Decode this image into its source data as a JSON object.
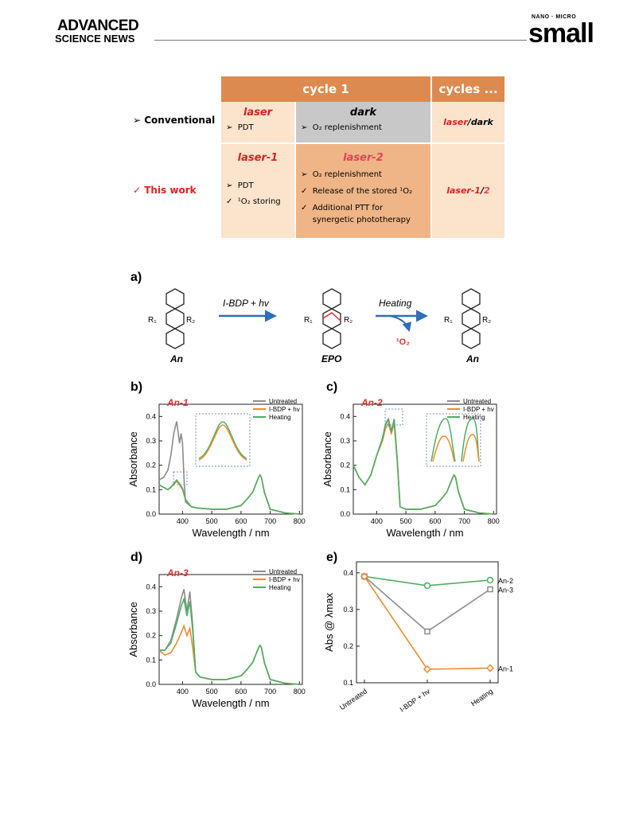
{
  "header": {
    "journal_left_line1": "ADVANCED",
    "journal_left_line2": "SCIENCE NEWS",
    "journal_right_top": "NANO · MICRO",
    "journal_right_main": "small"
  },
  "table": {
    "col_cycle1": "cycle 1",
    "col_cycles": "cycles ...",
    "row1_label": "Conventional",
    "row1_laser_title": "laser",
    "row1_laser_item": "PDT",
    "row1_dark_title": "dark",
    "row1_dark_item": "O₂ replenishment",
    "row1_cycles_a": "laser",
    "row1_cycles_sep": "/",
    "row1_cycles_b": "dark",
    "row2_label": "This work",
    "row2_laser1_title": "laser-1",
    "row2_laser1_item1": "PDT",
    "row2_laser1_item2": "¹O₂ storing",
    "row2_laser2_title": "laser-2",
    "row2_laser2_item1": "O₂ replenishment",
    "row2_laser2_item2": "Release of the stored ¹O₂",
    "row2_laser2_item3": "Additional PTT for synergetic phototherapy",
    "row2_cycles_a": "laser-1",
    "row2_cycles_sep": "/",
    "row2_cycles_b": "2",
    "colors": {
      "header_orange": "#dc8a50",
      "light_peach": "#fbe3cc",
      "gray": "#c8c8c8",
      "red": "#e02020"
    }
  },
  "scheme": {
    "label": "a)",
    "r1": "R₁",
    "r2": "R₂",
    "arrow1": "I-BDP + hv",
    "arrow2": "Heating",
    "released": "¹O₂",
    "mol1": "An",
    "mol2": "EPO",
    "mol3": "An"
  },
  "chart_data": [
    {
      "panel": "b)",
      "type": "line",
      "title": "An-1",
      "xlabel": "Wavelength / nm",
      "ylabel": "Absorbance",
      "xlim": [
        320,
        810
      ],
      "ylim": [
        0,
        0.45
      ],
      "xticks": [
        400,
        500,
        600,
        700,
        800
      ],
      "yticks": [
        0.0,
        0.1,
        0.2,
        0.3,
        0.4
      ],
      "legend": [
        "Untreated",
        "I-BDP + hv",
        "Heating"
      ],
      "series": [
        {
          "name": "Untreated",
          "color": "#8c8c8c",
          "x": [
            320,
            335,
            350,
            360,
            370,
            380,
            390,
            395,
            400,
            405,
            410,
            430,
            450,
            500,
            550,
            600,
            620,
            640,
            660,
            665,
            670,
            680,
            700,
            750,
            800
          ],
          "y": [
            0.14,
            0.15,
            0.18,
            0.24,
            0.33,
            0.38,
            0.29,
            0.33,
            0.29,
            0.15,
            0.05,
            0.03,
            0.025,
            0.02,
            0.02,
            0.035,
            0.06,
            0.09,
            0.15,
            0.16,
            0.15,
            0.09,
            0.02,
            0.005,
            0.0
          ]
        },
        {
          "name": "I-BDP + hv",
          "color": "#f08a30",
          "x": [
            320,
            335,
            350,
            360,
            370,
            380,
            390,
            400,
            410,
            430,
            450,
            500,
            550,
            600,
            620,
            640,
            660,
            665,
            670,
            680,
            700,
            750,
            800
          ],
          "y": [
            0.12,
            0.11,
            0.1,
            0.11,
            0.12,
            0.135,
            0.12,
            0.1,
            0.06,
            0.03,
            0.025,
            0.02,
            0.02,
            0.035,
            0.06,
            0.09,
            0.15,
            0.16,
            0.15,
            0.09,
            0.02,
            0.005,
            0.0
          ]
        },
        {
          "name": "Heating",
          "color": "#4caf63",
          "x": [
            320,
            335,
            350,
            360,
            370,
            380,
            390,
            400,
            410,
            430,
            450,
            500,
            550,
            600,
            620,
            640,
            660,
            665,
            670,
            680,
            700,
            750,
            800
          ],
          "y": [
            0.12,
            0.11,
            0.1,
            0.11,
            0.125,
            0.14,
            0.125,
            0.105,
            0.06,
            0.03,
            0.025,
            0.02,
            0.02,
            0.035,
            0.06,
            0.09,
            0.15,
            0.16,
            0.15,
            0.09,
            0.02,
            0.005,
            0.0
          ]
        }
      ]
    },
    {
      "panel": "c)",
      "type": "line",
      "title": "An-2",
      "xlabel": "Wavelength / nm",
      "ylabel": "Absorbance",
      "xlim": [
        320,
        810
      ],
      "ylim": [
        0,
        0.45
      ],
      "xticks": [
        400,
        500,
        600,
        700,
        800
      ],
      "yticks": [
        0.0,
        0.1,
        0.2,
        0.3,
        0.4
      ],
      "legend": [
        "Untreated",
        "I-BDP + hv",
        "Heating"
      ],
      "series": [
        {
          "name": "Untreated",
          "color": "#8c8c8c",
          "x": [
            320,
            340,
            360,
            380,
            400,
            420,
            430,
            440,
            450,
            460,
            470,
            480,
            500,
            550,
            600,
            620,
            640,
            660,
            665,
            670,
            680,
            700,
            750,
            800
          ],
          "y": [
            0.2,
            0.15,
            0.12,
            0.16,
            0.24,
            0.31,
            0.37,
            0.39,
            0.34,
            0.39,
            0.23,
            0.03,
            0.02,
            0.02,
            0.035,
            0.06,
            0.09,
            0.15,
            0.16,
            0.15,
            0.09,
            0.02,
            0.005,
            0.0
          ]
        },
        {
          "name": "I-BDP + hv",
          "color": "#f08a30",
          "x": [
            320,
            340,
            360,
            380,
            400,
            420,
            430,
            440,
            450,
            460,
            470,
            480,
            500,
            550,
            600,
            620,
            640,
            660,
            665,
            670,
            680,
            700,
            750,
            800
          ],
          "y": [
            0.2,
            0.15,
            0.12,
            0.16,
            0.24,
            0.3,
            0.35,
            0.37,
            0.33,
            0.37,
            0.22,
            0.03,
            0.02,
            0.02,
            0.035,
            0.06,
            0.09,
            0.15,
            0.16,
            0.15,
            0.09,
            0.02,
            0.005,
            0.0
          ]
        },
        {
          "name": "Heating",
          "color": "#4caf63",
          "x": [
            320,
            340,
            360,
            380,
            400,
            420,
            430,
            440,
            450,
            460,
            470,
            480,
            500,
            550,
            600,
            620,
            640,
            660,
            665,
            670,
            680,
            700,
            750,
            800
          ],
          "y": [
            0.2,
            0.15,
            0.12,
            0.16,
            0.24,
            0.31,
            0.365,
            0.385,
            0.34,
            0.385,
            0.23,
            0.03,
            0.02,
            0.02,
            0.035,
            0.06,
            0.09,
            0.15,
            0.16,
            0.15,
            0.09,
            0.02,
            0.005,
            0.0
          ]
        }
      ]
    },
    {
      "panel": "d)",
      "type": "line",
      "title": "An-3",
      "xlabel": "Wavelength / nm",
      "ylabel": "Absorbance",
      "xlim": [
        320,
        810
      ],
      "ylim": [
        0,
        0.45
      ],
      "xticks": [
        400,
        500,
        600,
        700,
        800
      ],
      "yticks": [
        0.0,
        0.1,
        0.2,
        0.3,
        0.4
      ],
      "legend": [
        "Untreated",
        "I-BDP + hv",
        "Heating"
      ],
      "series": [
        {
          "name": "Untreated",
          "color": "#8c8c8c",
          "x": [
            320,
            340,
            360,
            380,
            395,
            405,
            415,
            425,
            435,
            445,
            460,
            500,
            550,
            600,
            620,
            640,
            660,
            665,
            670,
            680,
            700,
            750,
            800
          ],
          "y": [
            0.14,
            0.14,
            0.18,
            0.27,
            0.35,
            0.39,
            0.3,
            0.38,
            0.24,
            0.05,
            0.03,
            0.02,
            0.02,
            0.035,
            0.06,
            0.09,
            0.15,
            0.16,
            0.15,
            0.09,
            0.02,
            0.005,
            0.0
          ]
        },
        {
          "name": "I-BDP + hv",
          "color": "#f08a30",
          "x": [
            320,
            340,
            360,
            380,
            395,
            405,
            415,
            425,
            435,
            445,
            460,
            500,
            550,
            600,
            620,
            640,
            660,
            665,
            670,
            680,
            700,
            750,
            800
          ],
          "y": [
            0.14,
            0.12,
            0.13,
            0.17,
            0.21,
            0.24,
            0.2,
            0.23,
            0.15,
            0.05,
            0.03,
            0.02,
            0.02,
            0.035,
            0.06,
            0.09,
            0.15,
            0.16,
            0.15,
            0.09,
            0.02,
            0.005,
            0.0
          ]
        },
        {
          "name": "Heating",
          "color": "#4caf63",
          "x": [
            320,
            340,
            360,
            380,
            395,
            405,
            415,
            425,
            435,
            445,
            460,
            500,
            550,
            600,
            620,
            640,
            660,
            665,
            670,
            680,
            700,
            750,
            800
          ],
          "y": [
            0.14,
            0.14,
            0.17,
            0.25,
            0.32,
            0.35,
            0.28,
            0.34,
            0.22,
            0.05,
            0.03,
            0.02,
            0.02,
            0.035,
            0.06,
            0.09,
            0.15,
            0.16,
            0.15,
            0.09,
            0.02,
            0.005,
            0.0
          ]
        }
      ]
    },
    {
      "panel": "e)",
      "type": "line",
      "ylabel": "Abs @ λmax",
      "categories": [
        "Untreated",
        "I-BDP + hv",
        "Heating"
      ],
      "ylim": [
        0.1,
        0.43
      ],
      "yticks": [
        0.1,
        0.2,
        0.3,
        0.4
      ],
      "series": [
        {
          "name": "An-2",
          "color": "#4caf63",
          "marker": "circle",
          "values": [
            0.39,
            0.365,
            0.38
          ]
        },
        {
          "name": "An-3",
          "color": "#8c8c8c",
          "marker": "square",
          "values": [
            0.39,
            0.24,
            0.355
          ]
        },
        {
          "name": "An-1",
          "color": "#f08a30",
          "marker": "diamond",
          "values": [
            0.39,
            0.137,
            0.14
          ]
        }
      ]
    }
  ]
}
